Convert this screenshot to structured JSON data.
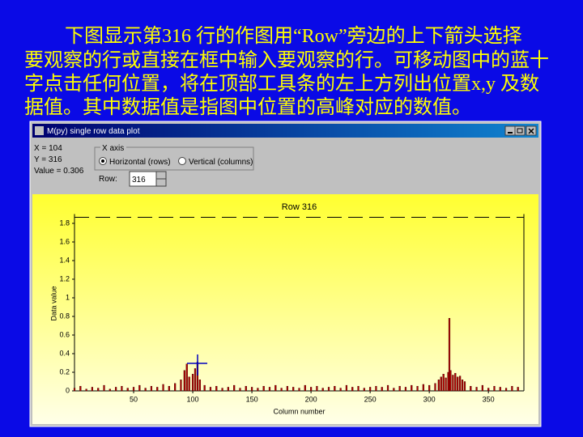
{
  "slide": {
    "lines": [
      "下图显示第316 行的作图用“Row”旁边的上下箭头选择",
      "要观察的行或直接在框中输入要观察的行。可移动图中的蓝十",
      "字点击任何位置，将在顶部工具条的左上方列出位置x,y 及数",
      "据值。其中数据值是指图中位置的高峰对应的数值。"
    ]
  },
  "window": {
    "title": "M(py) single row data plot"
  },
  "info": {
    "x": "X = 104",
    "y": "Y = 316",
    "value": "Value = 0.306"
  },
  "axis_group": {
    "label": "X axis",
    "options": [
      "Horizontal (rows)",
      "Vertical (columns)"
    ],
    "selected": 0
  },
  "row": {
    "label": "Row:",
    "value": "316"
  },
  "chart_data": {
    "type": "bar",
    "title": "Row 316",
    "x_label": "Column number",
    "y_label": "Data value",
    "color": "#b00000",
    "x": [
      0,
      5,
      10,
      15,
      20,
      25,
      30,
      35,
      40,
      45,
      50,
      55,
      60,
      65,
      70,
      75,
      80,
      85,
      90,
      93,
      95,
      97,
      100,
      102,
      104,
      106,
      110,
      115,
      120,
      125,
      130,
      135,
      140,
      145,
      150,
      155,
      160,
      165,
      170,
      175,
      180,
      185,
      190,
      195,
      200,
      205,
      210,
      215,
      220,
      225,
      230,
      235,
      240,
      245,
      250,
      255,
      260,
      265,
      270,
      275,
      280,
      285,
      290,
      295,
      300,
      305,
      308,
      310,
      312,
      314,
      316,
      317,
      318,
      320,
      322,
      324,
      326,
      328,
      330,
      335,
      340,
      345,
      350,
      355,
      360,
      365,
      370,
      375
    ],
    "values": [
      0.03,
      0.05,
      0.02,
      0.04,
      0.03,
      0.06,
      0.02,
      0.04,
      0.05,
      0.03,
      0.04,
      0.06,
      0.03,
      0.05,
      0.04,
      0.07,
      0.05,
      0.08,
      0.12,
      0.22,
      0.29,
      0.15,
      0.18,
      0.24,
      0.31,
      0.12,
      0.06,
      0.04,
      0.05,
      0.03,
      0.04,
      0.06,
      0.03,
      0.05,
      0.04,
      0.03,
      0.05,
      0.04,
      0.06,
      0.03,
      0.05,
      0.04,
      0.03,
      0.06,
      0.04,
      0.05,
      0.03,
      0.04,
      0.05,
      0.03,
      0.06,
      0.04,
      0.05,
      0.03,
      0.04,
      0.05,
      0.04,
      0.06,
      0.03,
      0.05,
      0.04,
      0.06,
      0.05,
      0.07,
      0.06,
      0.08,
      0.12,
      0.15,
      0.18,
      0.14,
      0.2,
      0.78,
      0.22,
      0.17,
      0.19,
      0.15,
      0.16,
      0.12,
      0.1,
      0.05,
      0.04,
      0.06,
      0.03,
      0.05,
      0.04,
      0.03,
      0.05,
      0.04
    ],
    "xlim": [
      0,
      380
    ],
    "ylim": [
      0,
      1.9
    ],
    "xticks": [
      50,
      100,
      150,
      200,
      250,
      300,
      350
    ],
    "yticks": [
      0,
      0.2,
      0.4,
      0.6,
      0.8,
      1,
      1.2,
      1.4,
      1.6,
      1.8
    ]
  }
}
